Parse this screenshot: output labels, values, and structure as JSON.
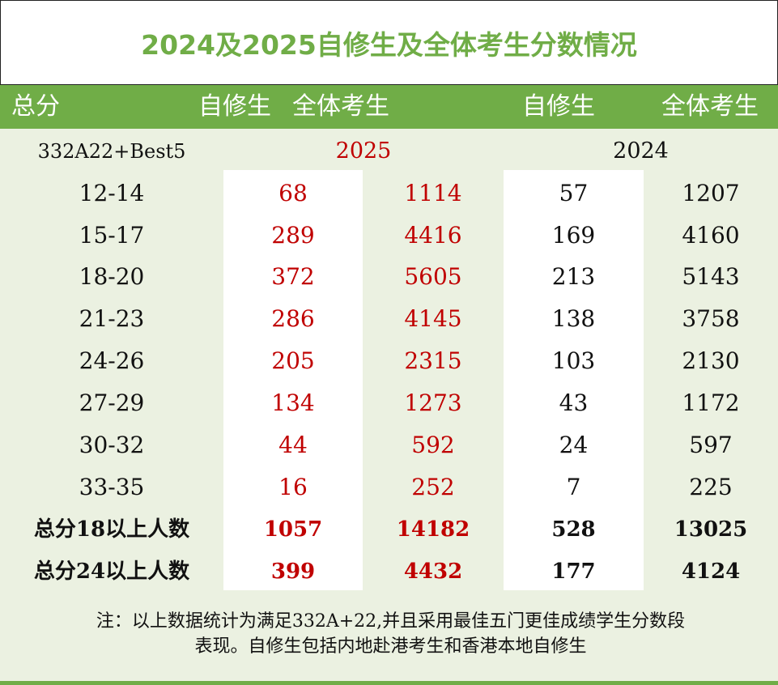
{
  "title": "2024及2025自修生及全体考生分数情况",
  "header": {
    "col_total": "总分",
    "col_private_2025": "自修生",
    "col_all_2025": "全体考生",
    "col_private_2024": "自修生",
    "col_all_2024": "全体考生"
  },
  "subheader": {
    "label": "332A22+Best5",
    "year_2025": "2025",
    "year_2024": "2024"
  },
  "rows": [
    {
      "range": "12-14",
      "p2025": "68",
      "a2025": "1114",
      "p2024": "57",
      "a2024": "1207"
    },
    {
      "range": "15-17",
      "p2025": "289",
      "a2025": "4416",
      "p2024": "169",
      "a2024": "4160"
    },
    {
      "range": "18-20",
      "p2025": "372",
      "a2025": "5605",
      "p2024": "213",
      "a2024": "5143"
    },
    {
      "range": "21-23",
      "p2025": "286",
      "a2025": "4145",
      "p2024": "138",
      "a2024": "3758"
    },
    {
      "range": "24-26",
      "p2025": "205",
      "a2025": "2315",
      "p2024": "103",
      "a2024": "2130"
    },
    {
      "range": "27-29",
      "p2025": "134",
      "a2025": "1273",
      "p2024": "43",
      "a2024": "1172"
    },
    {
      "range": "30-32",
      "p2025": "44",
      "a2025": "592",
      "p2024": "24",
      "a2024": "597"
    },
    {
      "range": "33-35",
      "p2025": "16",
      "a2025": "252",
      "p2024": "7",
      "a2024": "225"
    }
  ],
  "totals": [
    {
      "range": "总分18以上人数",
      "p2025": "1057",
      "a2025": "14182",
      "p2024": "528",
      "a2024": "13025"
    },
    {
      "range": "总分24以上人数",
      "p2025": "399",
      "a2025": "4432",
      "p2024": "177",
      "a2024": "4124"
    }
  ],
  "note": {
    "line1": "注：以上数据统计为满足332A+22,并且采用最佳五门更佳成绩学生分数段",
    "line2": "表现。自修生包括内地赴港考生和香港本地自修生"
  },
  "colors": {
    "accent_green": "#70ad47",
    "light_green": "#ebf1e1",
    "red_2025": "#c00000"
  }
}
